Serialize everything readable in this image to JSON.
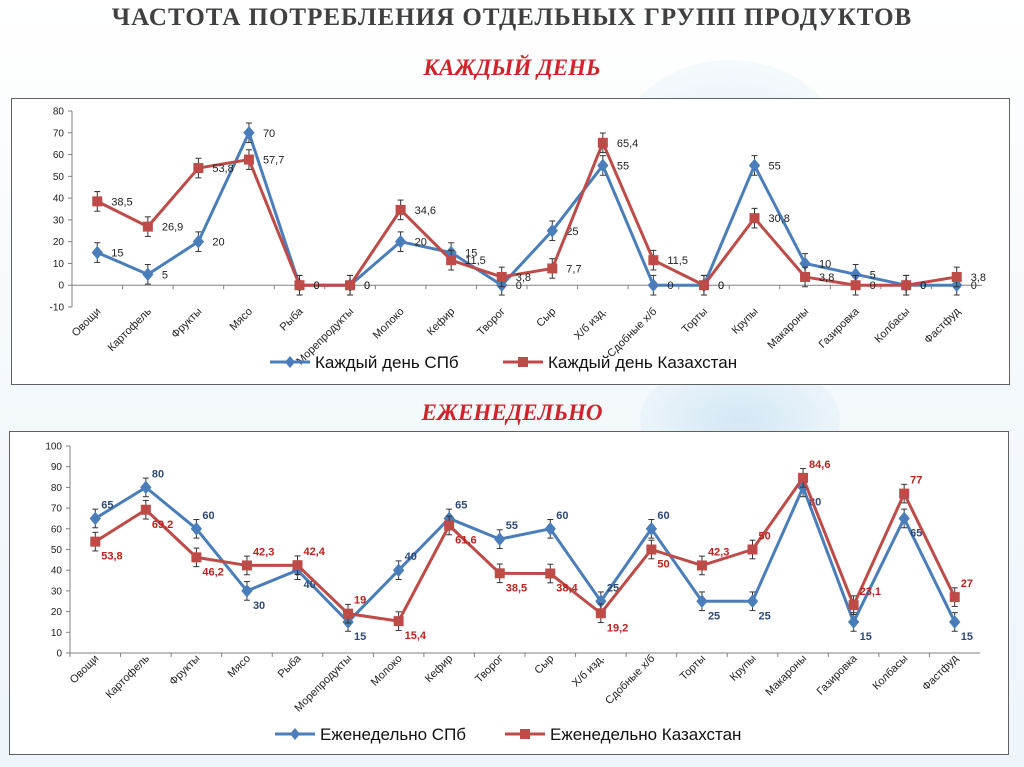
{
  "page": {
    "title": "ЧАСТОТА ПОТРЕБЛЕНИЯ ОТДЕЛЬНЫХ ГРУПП ПРОДУКТОВ",
    "section1_title": "КАЖДЫЙ ДЕНЬ",
    "section2_title": "ЕЖЕНЕДЕЛЬНО"
  },
  "chart_data": [
    {
      "type": "line",
      "title": "",
      "xlabel": "",
      "ylabel": "",
      "ylim": [
        -10,
        80
      ],
      "yticks": [
        -10,
        0,
        10,
        20,
        30,
        40,
        50,
        60,
        70,
        80
      ],
      "grid": false,
      "legend_position": "bottom",
      "error_bars": true,
      "categories": [
        "Овощи",
        "Картофель",
        "Фрукты",
        "Мясо",
        "Рыба",
        "Морепродукты",
        "Молоко",
        "Кефир",
        "Творог",
        "Сыр",
        "Х/б изд.",
        "Сдобные х/б",
        "Торты",
        "Крупы",
        "Макароны",
        "Газировка",
        "Колбасы",
        "Фастфуд"
      ],
      "series": [
        {
          "name": "Каждый день СПб",
          "color": "#4a7ebb",
          "marker": "diamond",
          "values": [
            15,
            5,
            20,
            70,
            0,
            0,
            20,
            15,
            0,
            25,
            55,
            0,
            0,
            55,
            10,
            5,
            0,
            0
          ],
          "labels": [
            "15",
            "5",
            "20",
            "70",
            "0",
            "0",
            "20",
            "15",
            "0",
            "25",
            "55",
            "0",
            "0",
            "55",
            "10",
            "5",
            "0",
            "0"
          ]
        },
        {
          "name": "Каждый день Казахстан",
          "color": "#be4b48",
          "marker": "square",
          "values": [
            38.5,
            26.9,
            53.8,
            57.7,
            0,
            0,
            34.6,
            11.5,
            3.8,
            7.7,
            65.4,
            11.5,
            0,
            30.8,
            3.8,
            0,
            0,
            3.8
          ],
          "labels": [
            "38,5",
            "26,9",
            "53,8",
            "57,7",
            "0",
            "0",
            "34,6",
            "11,5",
            "3,8",
            "7,7",
            "65,4",
            "11,5",
            "0",
            "30,8",
            "3,8",
            "0",
            "0",
            "3,8"
          ]
        }
      ]
    },
    {
      "type": "line",
      "title": "",
      "xlabel": "",
      "ylabel": "",
      "ylim": [
        0,
        100
      ],
      "yticks": [
        0,
        10,
        20,
        30,
        40,
        50,
        60,
        70,
        80,
        90,
        100
      ],
      "grid": false,
      "legend_position": "bottom",
      "error_bars": true,
      "categories": [
        "Овощи",
        "Картофель",
        "Фрукты",
        "Мясо",
        "Рыба",
        "Морепродукты",
        "Молоко",
        "Кефир",
        "Творог",
        "Сыр",
        "Х/б изд.",
        "Сдобные х/б",
        "Торты",
        "Крупы",
        "Макароны",
        "Газировка",
        "Колбасы",
        "Фастфуд"
      ],
      "series": [
        {
          "name": "Еженедельно СПб",
          "color": "#4a7ebb",
          "label_color": "#2f4a7a",
          "marker": "diamond",
          "values": [
            65,
            80,
            60,
            30,
            40,
            15,
            40,
            65,
            55,
            60,
            25,
            60,
            25,
            25,
            80,
            15,
            65,
            15
          ],
          "labels": [
            "65",
            "80",
            "60",
            "30",
            "40",
            "15",
            "40",
            "65",
            "55",
            "60",
            "25",
            "60",
            "25",
            "25",
            "80",
            "15",
            "65",
            "15"
          ]
        },
        {
          "name": "Еженедельно Казахстан",
          "color": "#be4b48",
          "label_color": "#c0201e",
          "marker": "square",
          "values": [
            53.8,
            69.2,
            46.2,
            42.3,
            42.4,
            19,
            15.4,
            61.6,
            38.5,
            38.4,
            19.2,
            50,
            42.3,
            50,
            84.6,
            23.1,
            77,
            27
          ],
          "labels": [
            "53,8",
            "69,2",
            "46,2",
            "42,3",
            "42,4",
            "19",
            "15,4",
            "61,6",
            "38,5",
            "38,4",
            "19,2",
            "50",
            "42,3",
            "50",
            "84,6",
            "23,1",
            "77",
            "27"
          ]
        }
      ]
    }
  ]
}
